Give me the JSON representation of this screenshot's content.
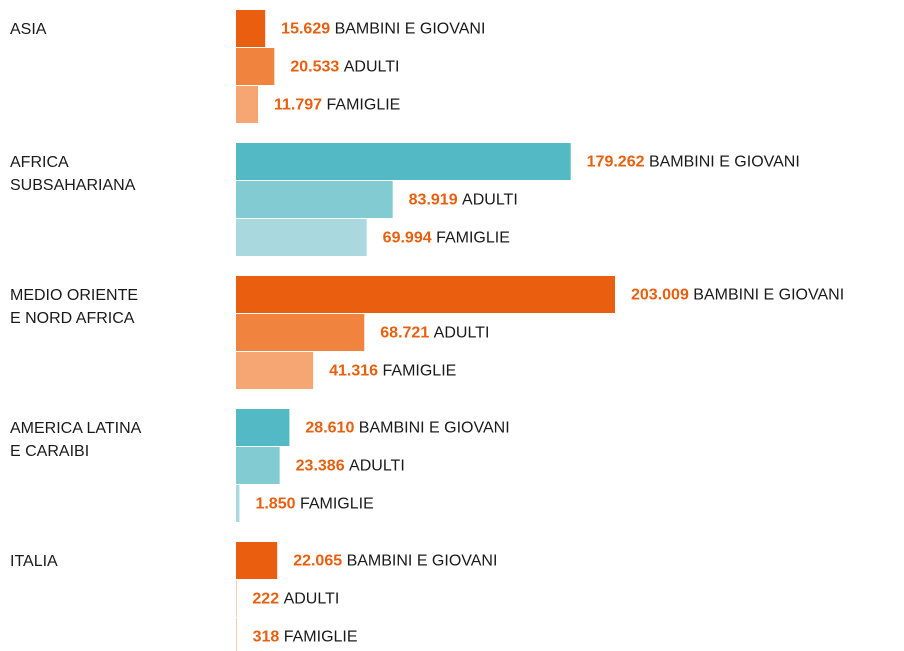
{
  "chart_data": {
    "type": "bar",
    "orientation": "horizontal",
    "categories": [
      [
        "ASIA"
      ],
      [
        "AFRICA",
        "SUBSAHARIANA"
      ],
      [
        "MEDIO ORIENTE",
        "E NORD AFRICA"
      ],
      [
        "AMERICA LATINA",
        "E CARAIBI"
      ],
      [
        "ITALIA"
      ]
    ],
    "value_label_color": "#e8600f",
    "series": [
      {
        "name": "BAMBINI E GIOVANI",
        "values": [
          15629,
          179262,
          203009,
          28610,
          22065
        ],
        "value_labels": [
          "15.629",
          "179.262",
          "203.009",
          "28.610",
          "22.065"
        ],
        "colors": [
          "#e95e0f",
          "#52b9c5",
          "#e95e0f",
          "#52b9c5",
          "#e95e0f"
        ]
      },
      {
        "name": "ADULTI",
        "values": [
          20533,
          83919,
          68721,
          23386,
          222
        ],
        "value_labels": [
          "20.533",
          "83.919",
          "68.721",
          "23.386",
          "222"
        ],
        "colors": [
          "#f0843f",
          "#83cbd3",
          "#f0843f",
          "#83cbd3",
          "#f0843f"
        ]
      },
      {
        "name": "FAMIGLIE",
        "values": [
          11797,
          69994,
          41316,
          1850,
          318
        ],
        "value_labels": [
          "11.797",
          "69.994",
          "41.316",
          "1.850",
          "318"
        ],
        "colors": [
          "#f5a672",
          "#a9d9de",
          "#f5a672",
          "#a9d9de",
          "#f5a672"
        ]
      }
    ]
  }
}
